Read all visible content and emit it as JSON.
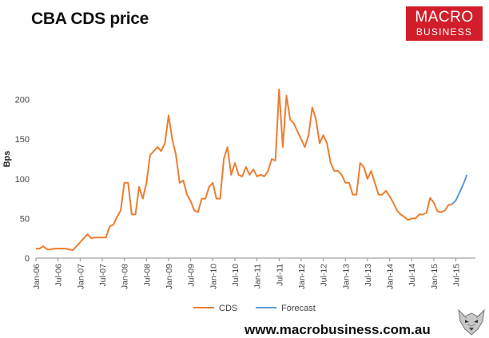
{
  "title": "CBA CDS price",
  "logo": {
    "line1": "MACRO",
    "line2": "BUSINESS",
    "color": "#d21e2a"
  },
  "footer": {
    "url": "www.macrobusiness.com.au"
  },
  "chart_data": {
    "type": "line",
    "ylabel": "Bps",
    "ylim": [
      0,
      250
    ],
    "yticks": [
      0,
      50,
      100,
      150,
      200
    ],
    "grid": false,
    "legend_position": "bottom",
    "x_tick_labels": [
      "Jan-06",
      "Jul-06",
      "Jan-07",
      "Jul-07",
      "Jan-08",
      "Jul-08",
      "Jan-09",
      "Jul-09",
      "Jan-10",
      "Jul-10",
      "Jan-11",
      "Jul-11",
      "Jan-12",
      "Jul-12",
      "Jan-13",
      "Jul-13",
      "Jan-14",
      "Jul-14",
      "Jan-15",
      "Jul-15"
    ],
    "series": [
      {
        "name": "CDS",
        "color": "#ed7d31",
        "points": [
          [
            "2006-01",
            12
          ],
          [
            "2006-02",
            12
          ],
          [
            "2006-03",
            15
          ],
          [
            "2006-04",
            11
          ],
          [
            "2006-05",
            11
          ],
          [
            "2006-06",
            12
          ],
          [
            "2006-07",
            12
          ],
          [
            "2006-08",
            12
          ],
          [
            "2006-09",
            12
          ],
          [
            "2006-10",
            11
          ],
          [
            "2006-11",
            10
          ],
          [
            "2006-12",
            15
          ],
          [
            "2007-01",
            20
          ],
          [
            "2007-02",
            25
          ],
          [
            "2007-03",
            30
          ],
          [
            "2007-04",
            25
          ],
          [
            "2007-05",
            26
          ],
          [
            "2007-06",
            26
          ],
          [
            "2007-07",
            26
          ],
          [
            "2007-08",
            26
          ],
          [
            "2007-09",
            40
          ],
          [
            "2007-10",
            42
          ],
          [
            "2007-11",
            52
          ],
          [
            "2007-12",
            60
          ],
          [
            "2008-01",
            95
          ],
          [
            "2008-02",
            95
          ],
          [
            "2008-03",
            55
          ],
          [
            "2008-04",
            55
          ],
          [
            "2008-05",
            90
          ],
          [
            "2008-06",
            75
          ],
          [
            "2008-07",
            95
          ],
          [
            "2008-08",
            130
          ],
          [
            "2008-09",
            135
          ],
          [
            "2008-10",
            140
          ],
          [
            "2008-11",
            135
          ],
          [
            "2008-12",
            145
          ],
          [
            "2009-01",
            180
          ],
          [
            "2009-02",
            150
          ],
          [
            "2009-03",
            130
          ],
          [
            "2009-04",
            95
          ],
          [
            "2009-05",
            98
          ],
          [
            "2009-06",
            80
          ],
          [
            "2009-07",
            72
          ],
          [
            "2009-08",
            60
          ],
          [
            "2009-09",
            58
          ],
          [
            "2009-10",
            75
          ],
          [
            "2009-11",
            75
          ],
          [
            "2009-12",
            90
          ],
          [
            "2010-01",
            95
          ],
          [
            "2010-02",
            75
          ],
          [
            "2010-03",
            75
          ],
          [
            "2010-04",
            125
          ],
          [
            "2010-05",
            140
          ],
          [
            "2010-06",
            105
          ],
          [
            "2010-07",
            120
          ],
          [
            "2010-08",
            105
          ],
          [
            "2010-09",
            103
          ],
          [
            "2010-10",
            115
          ],
          [
            "2010-11",
            105
          ],
          [
            "2010-12",
            112
          ],
          [
            "2011-01",
            103
          ],
          [
            "2011-02",
            105
          ],
          [
            "2011-03",
            103
          ],
          [
            "2011-04",
            110
          ],
          [
            "2011-05",
            125
          ],
          [
            "2011-06",
            123
          ],
          [
            "2011-07",
            213
          ],
          [
            "2011-08",
            140
          ],
          [
            "2011-09",
            205
          ],
          [
            "2011-10",
            175
          ],
          [
            "2011-11",
            170
          ],
          [
            "2011-12",
            160
          ],
          [
            "2012-01",
            150
          ],
          [
            "2012-02",
            140
          ],
          [
            "2012-03",
            155
          ],
          [
            "2012-04",
            190
          ],
          [
            "2012-05",
            175
          ],
          [
            "2012-06",
            145
          ],
          [
            "2012-07",
            155
          ],
          [
            "2012-08",
            145
          ],
          [
            "2012-09",
            120
          ],
          [
            "2012-10",
            110
          ],
          [
            "2012-11",
            110
          ],
          [
            "2012-12",
            105
          ],
          [
            "2013-01",
            95
          ],
          [
            "2013-02",
            95
          ],
          [
            "2013-03",
            80
          ],
          [
            "2013-04",
            80
          ],
          [
            "2013-05",
            120
          ],
          [
            "2013-06",
            115
          ],
          [
            "2013-07",
            100
          ],
          [
            "2013-08",
            110
          ],
          [
            "2013-09",
            95
          ],
          [
            "2013-10",
            80
          ],
          [
            "2013-11",
            80
          ],
          [
            "2013-12",
            85
          ],
          [
            "2014-01",
            78
          ],
          [
            "2014-02",
            70
          ],
          [
            "2014-03",
            60
          ],
          [
            "2014-04",
            55
          ],
          [
            "2014-05",
            52
          ],
          [
            "2014-06",
            48
          ],
          [
            "2014-07",
            50
          ],
          [
            "2014-08",
            50
          ],
          [
            "2014-09",
            55
          ],
          [
            "2014-10",
            55
          ],
          [
            "2014-11",
            57
          ],
          [
            "2014-12",
            76
          ],
          [
            "2015-01",
            70
          ],
          [
            "2015-02",
            59
          ],
          [
            "2015-03",
            58
          ],
          [
            "2015-04",
            60
          ],
          [
            "2015-05",
            67
          ],
          [
            "2015-06",
            68
          ]
        ]
      },
      {
        "name": "Forecast",
        "color": "#5b9bd5",
        "points": [
          [
            "2015-06",
            68
          ],
          [
            "2015-07",
            73
          ],
          [
            "2015-08",
            83
          ],
          [
            "2015-09",
            93
          ],
          [
            "2015-10",
            105
          ]
        ]
      }
    ]
  }
}
